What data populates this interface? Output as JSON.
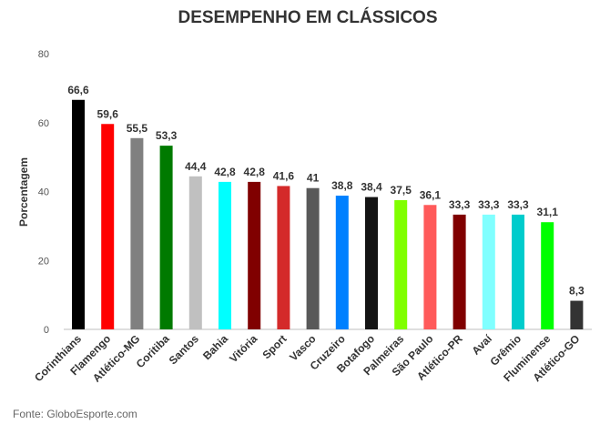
{
  "chart_data": {
    "type": "bar",
    "title": "DESEMPENHO EM CLÁSSICOS",
    "xlabel": "",
    "ylabel": "Porcentagem",
    "ylim": [
      0,
      80
    ],
    "yticks": [
      0,
      20,
      40,
      60,
      80
    ],
    "grid": false,
    "legend": "none",
    "categories": [
      "Corinthians",
      "Flamengo",
      "Atlético-MG",
      "Coritiba",
      "Santos",
      "Bahia",
      "Vitória",
      "Sport",
      "Vasco",
      "Cruzeiro",
      "Botafogo",
      "Palmeiras",
      "São Paulo",
      "Atlético-PR",
      "Avaí",
      "Grêmio",
      "Fluminense",
      "Atlético-GO"
    ],
    "values": [
      66.6,
      59.6,
      55.5,
      53.3,
      44.4,
      42.8,
      42.8,
      41.6,
      41,
      38.8,
      38.4,
      37.5,
      36.1,
      33.3,
      33.3,
      33.3,
      31.1,
      8.3
    ],
    "data_labels": [
      "66,6",
      "59,6",
      "55,5",
      "53,3",
      "44,4",
      "42,8",
      "42,8",
      "41,6",
      "41",
      "38,8",
      "38,4",
      "37,5",
      "36,1",
      "33,3",
      "33,3",
      "33,3",
      "31,1",
      "8,3"
    ],
    "colors": [
      "#000000",
      "#ff0000",
      "#808080",
      "#007a00",
      "#c0c0c0",
      "#00ffff",
      "#800000",
      "#d42a2a",
      "#595959",
      "#0080ff",
      "#141414",
      "#80ff00",
      "#ff5a5a",
      "#800000",
      "#80ffff",
      "#00cccc",
      "#00ff00",
      "#333333"
    ]
  },
  "source": "Fonte: GloboEsporte.com"
}
